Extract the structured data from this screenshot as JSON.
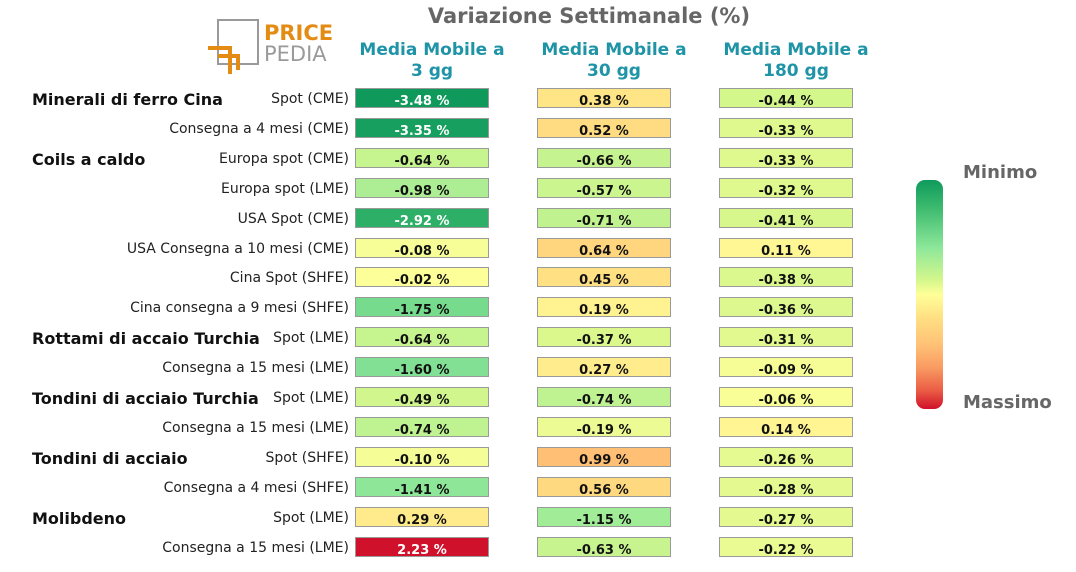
{
  "title": "Variazione Settimanale (%)",
  "logo": {
    "line1": "PRICE",
    "line2": "PEDIA"
  },
  "colorbar": {
    "min_label": "Minimo",
    "max_label": "Massimo"
  },
  "chart_data": {
    "type": "heatmap",
    "title": "Variazione Settimanale (%)",
    "columns": [
      "Media Mobile a 3 gg",
      "Media Mobile a 30 gg",
      "Media Mobile a 180 gg"
    ],
    "column_lines": [
      [
        "Media Mobile a",
        "3 gg"
      ],
      [
        "Media Mobile a",
        "30 gg"
      ],
      [
        "Media Mobile a",
        "180 gg"
      ]
    ],
    "rows": [
      {
        "group": "Minerali di ferro Cina",
        "sub": "Spot (CME)",
        "values": [
          -3.48,
          0.38,
          -0.44
        ],
        "labels": [
          "-3.48 %",
          "0.38 %",
          "-0.44 %"
        ]
      },
      {
        "group": "",
        "sub": "Consegna a 4 mesi (CME)",
        "values": [
          -3.35,
          0.52,
          -0.33
        ],
        "labels": [
          "-3.35 %",
          "0.52 %",
          "-0.33 %"
        ]
      },
      {
        "group": "Coils a caldo",
        "sub": "Europa spot (CME)",
        "values": [
          -0.64,
          -0.66,
          -0.33
        ],
        "labels": [
          "-0.64 %",
          "-0.66 %",
          "-0.33 %"
        ]
      },
      {
        "group": "",
        "sub": "Europa spot (LME)",
        "values": [
          -0.98,
          -0.57,
          -0.32
        ],
        "labels": [
          "-0.98 %",
          "-0.57 %",
          "-0.32 %"
        ]
      },
      {
        "group": "",
        "sub": "USA Spot (CME)",
        "values": [
          -2.92,
          -0.71,
          -0.41
        ],
        "labels": [
          "-2.92 %",
          "-0.71 %",
          "-0.41 %"
        ]
      },
      {
        "group": "",
        "sub": "USA Consegna a 10 mesi (CME)",
        "values": [
          -0.08,
          0.64,
          0.11
        ],
        "labels": [
          "-0.08 %",
          "0.64 %",
          "0.11 %"
        ]
      },
      {
        "group": "",
        "sub": "Cina Spot (SHFE)",
        "values": [
          -0.02,
          0.45,
          -0.38
        ],
        "labels": [
          "-0.02 %",
          "0.45 %",
          "-0.38 %"
        ]
      },
      {
        "group": "",
        "sub": "Cina consegna a 9 mesi (SHFE)",
        "values": [
          -1.75,
          0.19,
          -0.36
        ],
        "labels": [
          "-1.75 %",
          "0.19 %",
          "-0.36 %"
        ]
      },
      {
        "group": "Rottami di accaio Turchia",
        "sub": "Spot (LME)",
        "values": [
          -0.64,
          -0.37,
          -0.31
        ],
        "labels": [
          "-0.64 %",
          "-0.37 %",
          "-0.31 %"
        ]
      },
      {
        "group": "",
        "sub": "Consegna a 15 mesi (LME)",
        "values": [
          -1.6,
          0.27,
          -0.09
        ],
        "labels": [
          "-1.60 %",
          "0.27 %",
          "-0.09 %"
        ]
      },
      {
        "group": "Tondini di acciaio Turchia",
        "sub": "Spot (LME)",
        "values": [
          -0.49,
          -0.74,
          -0.06
        ],
        "labels": [
          "-0.49 %",
          "-0.74 %",
          "-0.06 %"
        ]
      },
      {
        "group": "",
        "sub": "Consegna a 15 mesi (LME)",
        "values": [
          -0.74,
          -0.19,
          0.14
        ],
        "labels": [
          "-0.74 %",
          "-0.19 %",
          "0.14 %"
        ]
      },
      {
        "group": "Tondini di acciaio",
        "sub": "Spot (SHFE)",
        "values": [
          -0.1,
          0.99,
          -0.26
        ],
        "labels": [
          "-0.10 %",
          "0.99 %",
          "-0.26 %"
        ]
      },
      {
        "group": "",
        "sub": "Consegna a 4 mesi (SHFE)",
        "values": [
          -1.41,
          0.56,
          -0.28
        ],
        "labels": [
          "-1.41 %",
          "0.56 %",
          "-0.28 %"
        ]
      },
      {
        "group": "Molibdeno",
        "sub": "Spot (LME)",
        "values": [
          0.29,
          -1.15,
          -0.27
        ],
        "labels": [
          "0.29 %",
          "-1.15 %",
          "-0.27 %"
        ]
      },
      {
        "group": "",
        "sub": "Consegna a 15 mesi (LME)",
        "values": [
          2.23,
          -0.63,
          -0.22
        ],
        "labels": [
          "2.23 %",
          "-0.63 %",
          "-0.22 %"
        ]
      }
    ],
    "colors": {
      "min": "#0f9a5c",
      "mid": "#ffff99",
      "max": "#d0112b"
    }
  }
}
